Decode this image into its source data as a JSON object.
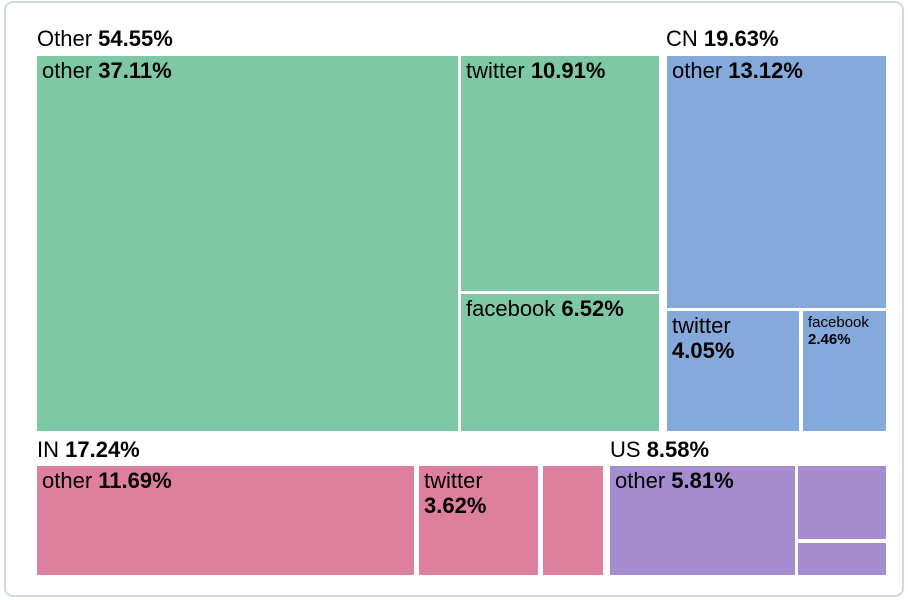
{
  "card": {
    "background": "#ffffff",
    "border_color": "#ccd8ea",
    "text_color": "#000000"
  },
  "chart_data": {
    "type": "treemap",
    "unit": "%",
    "legend": "none",
    "groups": [
      {
        "label": "Other",
        "value_label": "54.55%",
        "value": 54.55,
        "color": "#7ec8a6",
        "children": [
          {
            "label": "other",
            "value_label": "37.11%",
            "value": 37.11
          },
          {
            "label": "twitter",
            "value_label": "10.91%",
            "value": 10.91
          },
          {
            "label": "facebook",
            "value_label": "6.52%",
            "value": 6.52
          }
        ]
      },
      {
        "label": "CN",
        "value_label": "19.63%",
        "value": 19.63,
        "color": "#84a9da",
        "children": [
          {
            "label": "other",
            "value_label": "13.12%",
            "value": 13.12
          },
          {
            "label": "twitter",
            "value_label": "4.05%",
            "value": 4.05
          },
          {
            "label": "facebook",
            "value_label": "2.46%",
            "value": 2.46
          }
        ]
      },
      {
        "label": "IN",
        "value_label": "17.24%",
        "value": 17.24,
        "color": "#de7f9d",
        "children": [
          {
            "label": "other",
            "value_label": "11.69%",
            "value": 11.69
          },
          {
            "label": "twitter",
            "value_label": "3.62%",
            "value": 3.62
          },
          {
            "label": "",
            "value_label": "",
            "value": 1.93,
            "estimated": true
          }
        ]
      },
      {
        "label": "US",
        "value_label": "8.58%",
        "value": 8.58,
        "color": "#a48ccf",
        "children": [
          {
            "label": "other",
            "value_label": "5.81%",
            "value": 5.81
          },
          {
            "label": "",
            "value_label": "",
            "value": 1.93,
            "estimated": true
          },
          {
            "label": "",
            "value_label": "",
            "value": 0.84,
            "estimated": true
          }
        ]
      }
    ]
  }
}
